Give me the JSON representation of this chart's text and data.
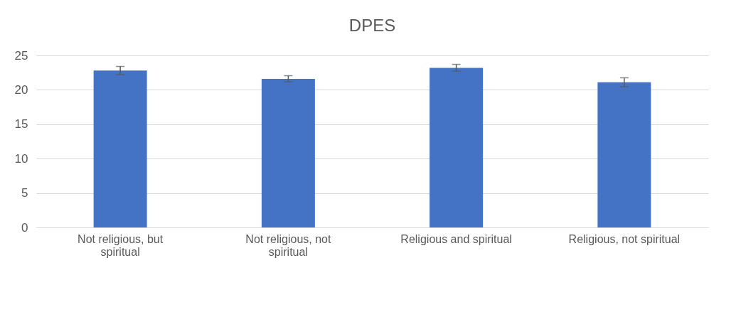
{
  "chart_data": {
    "type": "bar",
    "title": "DPES",
    "categories": [
      "Not religious, but spiritual",
      "Not religious, not spiritual",
      "Religious and spiritual",
      "Religious, not spiritual"
    ],
    "values": [
      22.8,
      21.6,
      23.2,
      21.1
    ],
    "errors": [
      0.6,
      0.45,
      0.5,
      0.65
    ],
    "color": "#4472c4",
    "ylim": [
      0,
      25
    ],
    "yticks": [
      0,
      5,
      10,
      15,
      20,
      25
    ],
    "grid": "y"
  }
}
